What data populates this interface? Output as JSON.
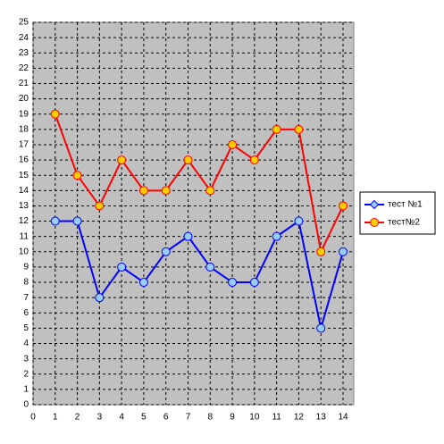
{
  "chart_data": {
    "type": "line",
    "x": [
      1,
      2,
      3,
      4,
      5,
      6,
      7,
      8,
      9,
      10,
      11,
      12,
      13,
      14
    ],
    "series": [
      {
        "name": "тест №1",
        "color": "#0000ff",
        "marker_fill": "#99ccff",
        "marker": "circle",
        "legend_marker": "diamond",
        "values": [
          12,
          12,
          7,
          9,
          8,
          10,
          11,
          9,
          8,
          8,
          11,
          12,
          5,
          10
        ]
      },
      {
        "name": "тест№2",
        "color": "#ff0000",
        "marker_fill": "#ffcc00",
        "marker": "circle",
        "legend_marker": "circle",
        "values": [
          19,
          15,
          13,
          16,
          14,
          14,
          16,
          14,
          17,
          16,
          18,
          18,
          10,
          13
        ]
      }
    ],
    "xlim": [
      0,
      14
    ],
    "xticks": [
      0,
      1,
      2,
      3,
      4,
      5,
      6,
      7,
      8,
      9,
      10,
      11,
      12,
      13,
      14
    ],
    "ylim": [
      0,
      25
    ],
    "yticks": [
      0,
      1,
      2,
      3,
      4,
      5,
      6,
      7,
      8,
      9,
      10,
      11,
      12,
      13,
      14,
      15,
      16,
      17,
      18,
      19,
      20,
      21,
      22,
      23,
      24,
      25
    ],
    "grid": true,
    "legend": "right"
  }
}
